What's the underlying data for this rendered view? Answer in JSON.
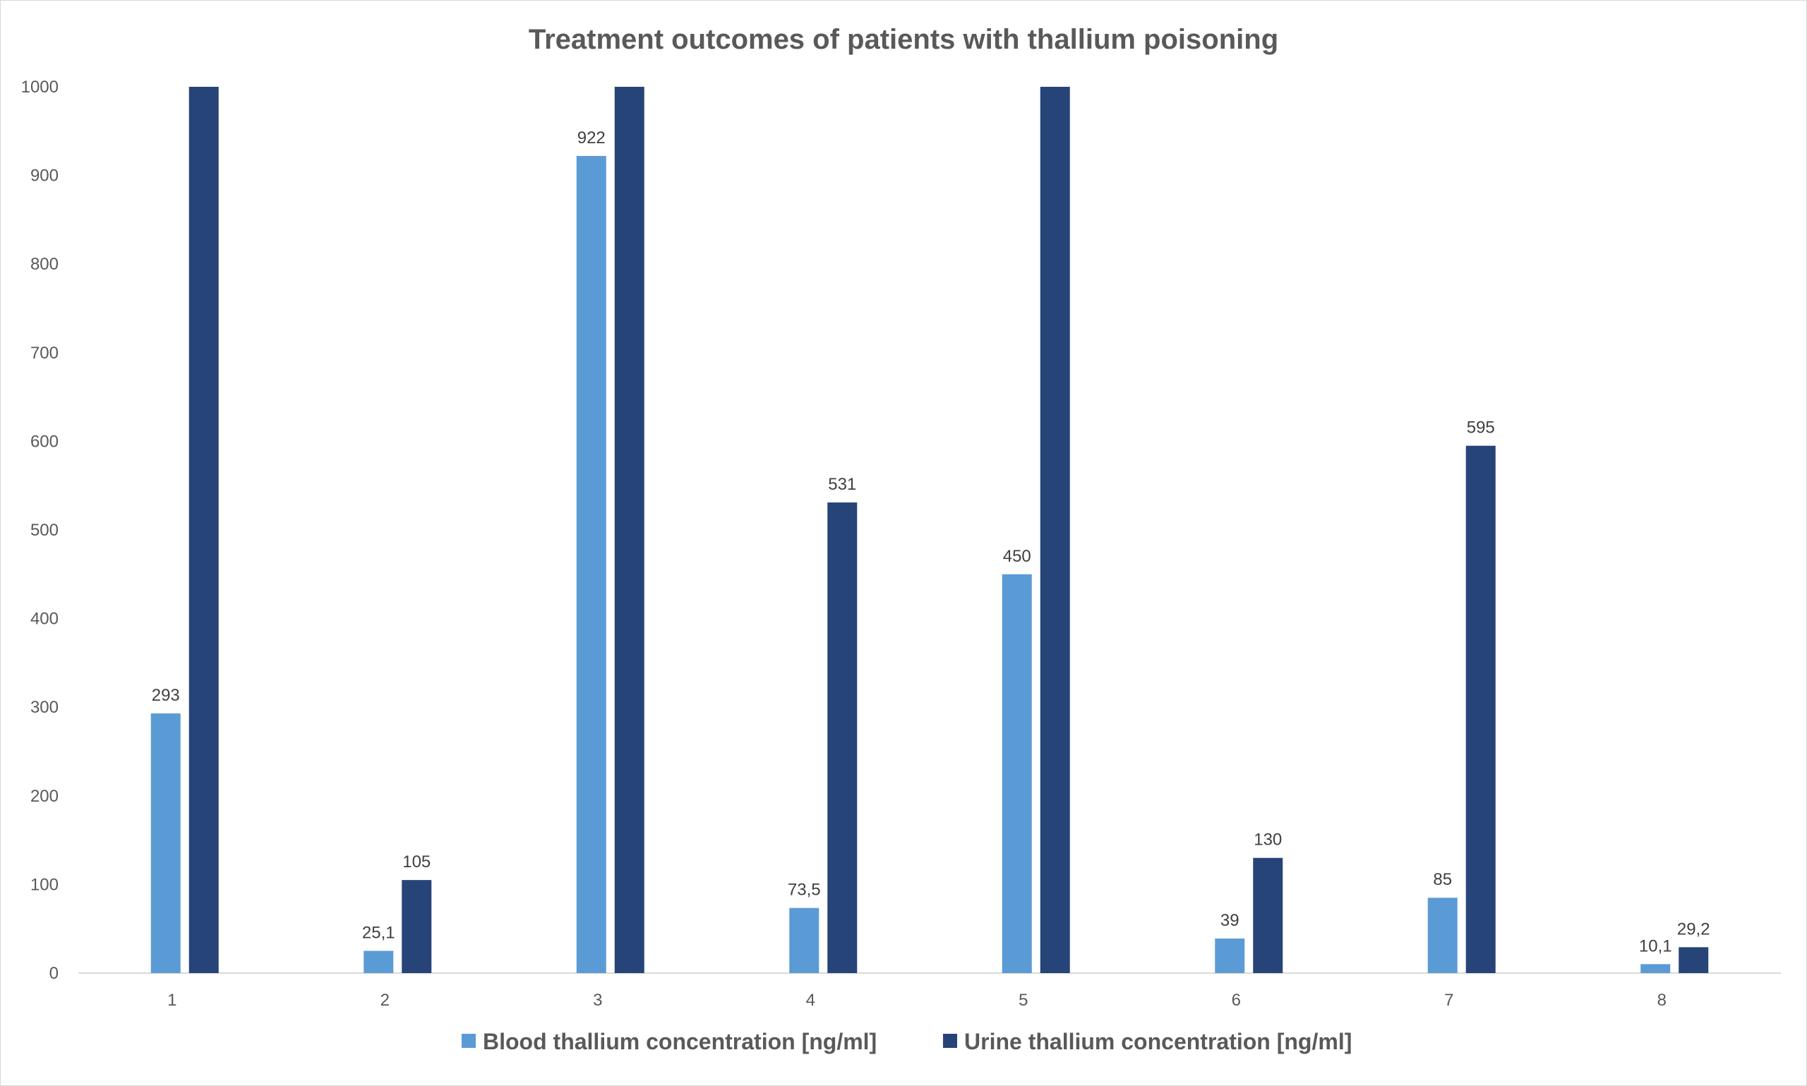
{
  "chart_data": {
    "type": "bar",
    "title": "Treatment outcomes of patients with thallium poisoning",
    "xlabel": "",
    "ylabel": "",
    "ylim": [
      0,
      1000
    ],
    "yticks": [
      0,
      100,
      200,
      300,
      400,
      500,
      600,
      700,
      800,
      900,
      1000
    ],
    "categories": [
      "1",
      "2",
      "3",
      "4",
      "5",
      "6",
      "7",
      "8"
    ],
    "series": [
      {
        "name": "Blood thallium concentration [ng/ml]",
        "color": "#5b9bd5",
        "values": [
          293,
          25.1,
          922,
          73.5,
          450,
          39,
          85,
          10.1
        ],
        "labels": [
          "293",
          "25,1",
          "922",
          "73,5",
          "450",
          "39",
          "85",
          "10,1"
        ]
      },
      {
        "name": "Urine thallium concentration [ng/ml]",
        "color": "#264478",
        "values": [
          1000,
          105,
          1000,
          531,
          1000,
          130,
          595,
          29.2
        ],
        "labels": [
          "",
          "105",
          "",
          "531",
          "",
          "130",
          "595",
          "29,2"
        ]
      }
    ],
    "legend_position": "bottom",
    "grid": false
  }
}
